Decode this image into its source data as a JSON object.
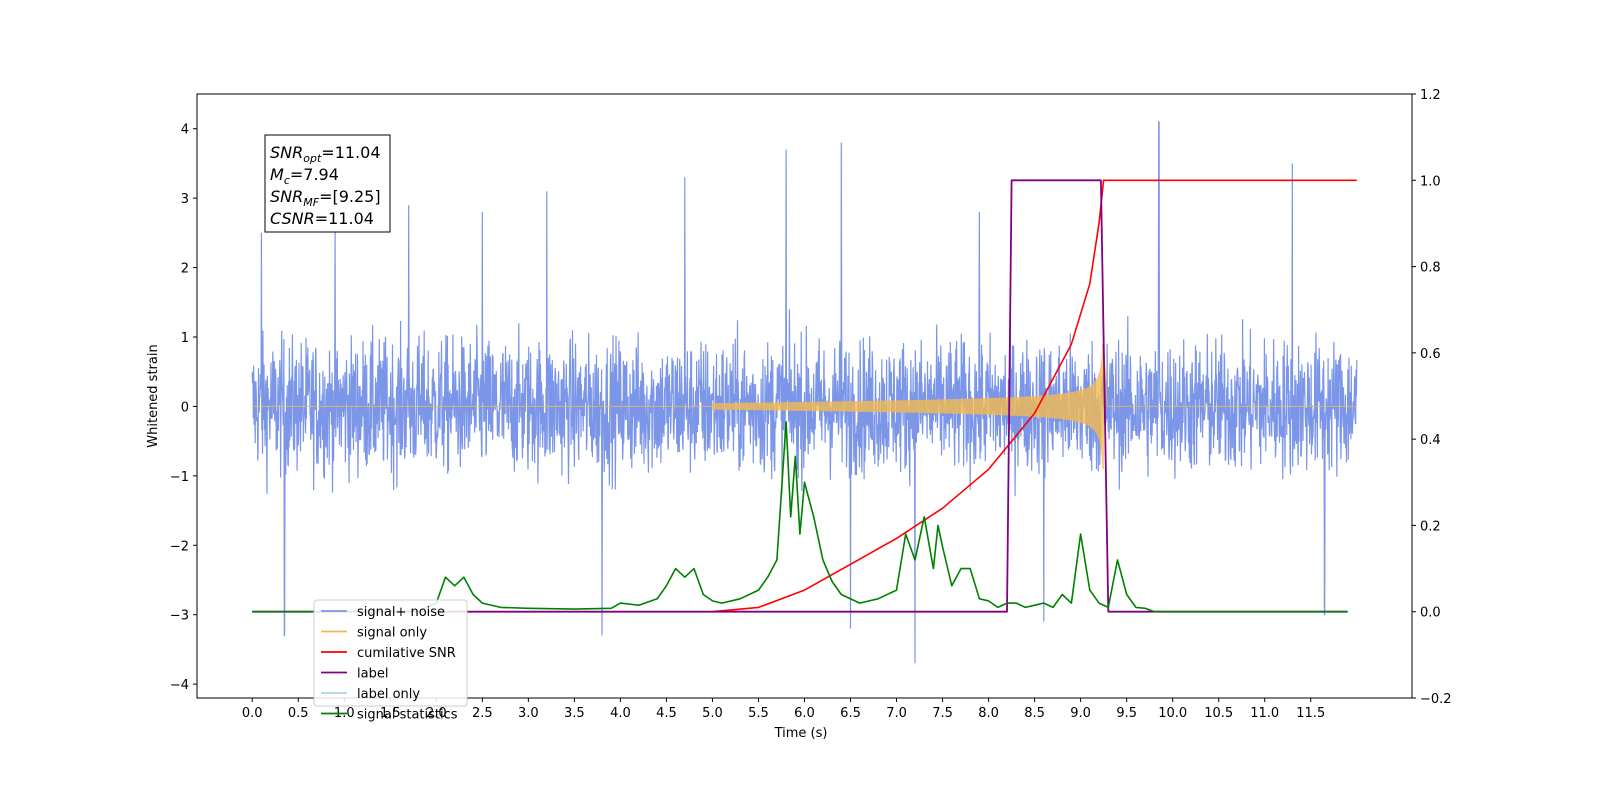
{
  "chart_data": {
    "type": "line",
    "xlabel": "Time (s)",
    "ylabel": "Whitened strain",
    "xlim": [
      -0.6,
      12.6
    ],
    "ylim": [
      -4.2,
      4.5
    ],
    "ylim_right": [
      -0.2,
      1.2
    ],
    "x_ticks": [
      "0.0",
      "0.5",
      "1.0",
      "1.5",
      "2.0",
      "2.5",
      "3.0",
      "3.5",
      "4.0",
      "4.5",
      "5.0",
      "5.5",
      "6.0",
      "6.5",
      "7.0",
      "7.5",
      "8.0",
      "8.5",
      "9.0",
      "9.5",
      "10.0",
      "10.5",
      "11.0",
      "11.5"
    ],
    "y_ticks_left": [
      "4",
      "3",
      "2",
      "1",
      "0",
      "−1",
      "−2",
      "−3",
      "−4"
    ],
    "y_ticks_right": [
      "1.2",
      "1.0",
      "0.8",
      "0.6",
      "0.4",
      "0.2",
      "0.0",
      "−0.2"
    ],
    "legend_position": "lower-left",
    "annotation": {
      "lines": [
        {
          "sym": "SNR",
          "sub": "opt",
          "value": "=11.04"
        },
        {
          "sym": "M",
          "sub": "c",
          "value": "=7.94"
        },
        {
          "sym": "SNR",
          "sub": "MF",
          "value": "=[9.25]"
        },
        {
          "sym": "CSNR",
          "sub": "",
          "value": "=11.04"
        }
      ]
    },
    "series": [
      {
        "name": "signal+ noise",
        "color": "#7b96e8",
        "axis": "left",
        "x_range": [
          0.0,
          12.0
        ],
        "envelope": 2.4,
        "spikes": [
          [
            0.1,
            2.5
          ],
          [
            0.35,
            -3.3
          ],
          [
            0.9,
            2.6
          ],
          [
            1.7,
            2.9
          ],
          [
            2.5,
            2.8
          ],
          [
            3.2,
            3.1
          ],
          [
            3.8,
            -3.3
          ],
          [
            4.7,
            3.3
          ],
          [
            5.8,
            3.7
          ],
          [
            6.4,
            3.8
          ],
          [
            6.5,
            -3.2
          ],
          [
            7.2,
            -3.7
          ],
          [
            7.9,
            2.8
          ],
          [
            8.6,
            -3.1
          ],
          [
            9.85,
            4.1
          ],
          [
            11.3,
            3.5
          ],
          [
            11.65,
            -3.0
          ]
        ]
      },
      {
        "name": "signal only",
        "color": "#f4b94f",
        "axis": "left",
        "chirp_start": 5.0,
        "merger": 9.25,
        "peak_amplitude": 0.9
      },
      {
        "name": "cumilative SNR",
        "color": "#ff0000",
        "axis": "right",
        "x": [
          5.0,
          5.5,
          6.0,
          6.5,
          7.0,
          7.5,
          8.0,
          8.5,
          8.9,
          9.1,
          9.2,
          9.25,
          12.0
        ],
        "y": [
          0.0,
          0.01,
          0.05,
          0.11,
          0.17,
          0.24,
          0.33,
          0.46,
          0.62,
          0.76,
          0.9,
          1.0,
          1.0
        ]
      },
      {
        "name": "label",
        "color": "#800080",
        "axis": "right",
        "x": [
          0.0,
          8.2,
          8.25,
          9.22,
          9.3,
          11.9
        ],
        "y": [
          0.0,
          0.0,
          1.0,
          1.0,
          0.0,
          0.0
        ]
      },
      {
        "name": "label only",
        "color": "#add8e6",
        "axis": "right",
        "x": [],
        "y": []
      },
      {
        "name": "signal statistics",
        "color": "#008000",
        "axis": "right",
        "x": [
          0.0,
          1.8,
          2.0,
          2.1,
          2.2,
          2.3,
          2.4,
          2.5,
          2.7,
          3.0,
          3.5,
          3.9,
          4.0,
          4.2,
          4.4,
          4.5,
          4.6,
          4.7,
          4.8,
          4.9,
          5.0,
          5.1,
          5.3,
          5.5,
          5.6,
          5.7,
          5.8,
          5.85,
          5.9,
          5.95,
          6.0,
          6.1,
          6.2,
          6.3,
          6.4,
          6.6,
          6.8,
          7.0,
          7.1,
          7.2,
          7.3,
          7.4,
          7.45,
          7.5,
          7.6,
          7.7,
          7.8,
          7.9,
          8.0,
          8.1,
          8.2,
          8.3,
          8.4,
          8.5,
          8.6,
          8.7,
          8.8,
          8.9,
          9.0,
          9.1,
          9.2,
          9.3,
          9.4,
          9.5,
          9.6,
          9.7,
          9.8,
          10.0,
          11.9
        ],
        "y": [
          0.0,
          0.0,
          0.02,
          0.08,
          0.06,
          0.08,
          0.04,
          0.02,
          0.01,
          0.008,
          0.006,
          0.008,
          0.02,
          0.015,
          0.03,
          0.06,
          0.1,
          0.08,
          0.1,
          0.04,
          0.025,
          0.02,
          0.03,
          0.05,
          0.08,
          0.12,
          0.44,
          0.22,
          0.36,
          0.18,
          0.3,
          0.22,
          0.12,
          0.07,
          0.04,
          0.02,
          0.03,
          0.05,
          0.18,
          0.12,
          0.22,
          0.1,
          0.2,
          0.15,
          0.06,
          0.1,
          0.1,
          0.03,
          0.025,
          0.01,
          0.02,
          0.02,
          0.01,
          0.015,
          0.02,
          0.01,
          0.04,
          0.02,
          0.18,
          0.05,
          0.02,
          0.01,
          0.12,
          0.04,
          0.01,
          0.008,
          0.0,
          0.0,
          0.0
        ]
      }
    ]
  }
}
